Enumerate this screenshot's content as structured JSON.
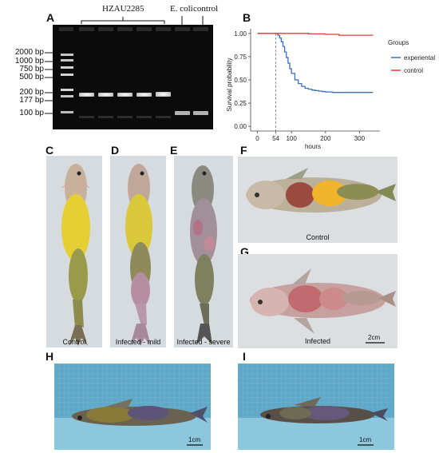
{
  "panels": {
    "A": "A",
    "B": "B",
    "C": "C",
    "D": "D",
    "E": "E",
    "F": "F",
    "G": "G",
    "H": "H",
    "I": "I"
  },
  "gel": {
    "header_strain": "HZAU2285",
    "header_ecoli": "E. coli",
    "header_control": "control",
    "ladder_labels": [
      "2000 bp",
      "1000 bp",
      "750 bp",
      "500 bp",
      "200 bp",
      "177 bp",
      "100 bp"
    ]
  },
  "chart_data": {
    "type": "line",
    "title": "",
    "xlabel": "hours",
    "ylabel": "Survival probability",
    "xlim": [
      -20,
      360
    ],
    "ylim": [
      -0.05,
      1.05
    ],
    "xticks": [
      0,
      54,
      100,
      200,
      300
    ],
    "yticks": [
      0.0,
      0.25,
      0.5,
      0.75,
      1.0
    ],
    "ytick_labels": [
      "0.00",
      "0.25",
      "0.50",
      "0.75",
      "1.00"
    ],
    "annotation_vline_x": 54,
    "legend": {
      "title": "Groups",
      "placement": "right"
    },
    "series": [
      {
        "name": "experiental",
        "color": "#3b6fc4",
        "x": [
          0,
          54,
          60,
          65,
          70,
          75,
          80,
          85,
          90,
          95,
          100,
          110,
          120,
          130,
          140,
          150,
          160,
          170,
          180,
          190,
          200,
          210,
          220,
          240,
          260,
          300,
          340
        ],
        "y": [
          1.0,
          1.0,
          0.98,
          0.95,
          0.91,
          0.86,
          0.8,
          0.74,
          0.68,
          0.62,
          0.57,
          0.5,
          0.46,
          0.43,
          0.41,
          0.4,
          0.39,
          0.385,
          0.38,
          0.375,
          0.37,
          0.37,
          0.365,
          0.365,
          0.365,
          0.365,
          0.365
        ]
      },
      {
        "name": "control",
        "color": "#e53935",
        "x": [
          0,
          100,
          150,
          200,
          240,
          300,
          340
        ],
        "y": [
          1.0,
          1.0,
          0.995,
          0.99,
          0.98,
          0.98,
          0.98
        ]
      }
    ]
  },
  "captions": {
    "C": "Control",
    "D": "Infected - mild",
    "E": "Infected - severe",
    "F": "Control",
    "G": "Infected",
    "G_scale": "2cm",
    "H_scale": "1cm",
    "I_scale": "1cm"
  },
  "colors": {
    "gel_bg": "#0b0b0b",
    "band": "#f2f2f2",
    "photo_bg": "#d9dde2",
    "tank_bg": "#5fa8c8"
  }
}
